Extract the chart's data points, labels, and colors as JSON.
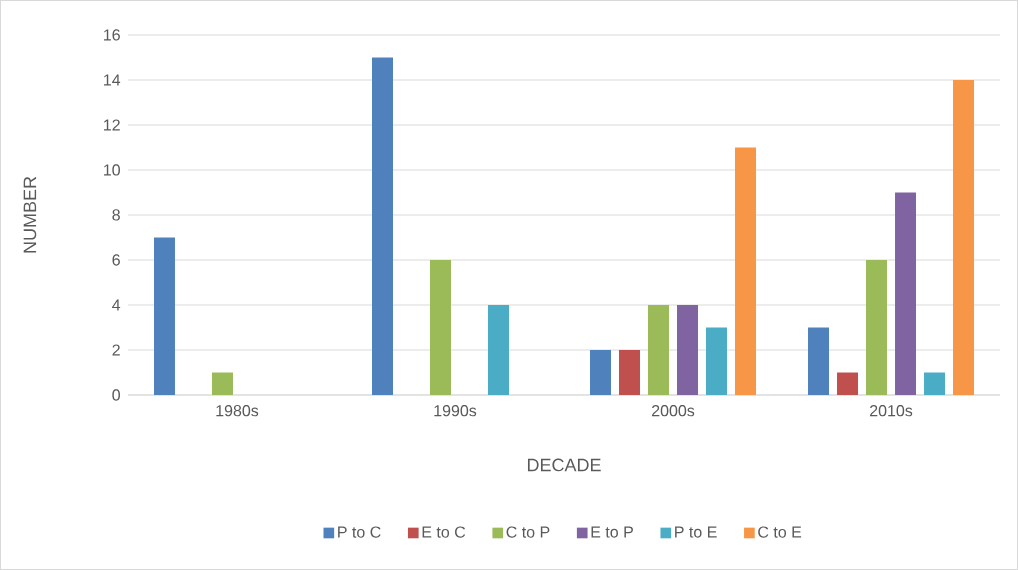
{
  "chart_data": {
    "type": "bar",
    "xlabel": "DECADE",
    "ylabel": "NUMBER",
    "categories": [
      "1980s",
      "1990s",
      "2000s",
      "2010s"
    ],
    "series": [
      {
        "name": "P to C",
        "color": "#4f81bd",
        "values": [
          7,
          15,
          2,
          3
        ]
      },
      {
        "name": "E to C",
        "color": "#c0504d",
        "values": [
          0,
          0,
          2,
          1
        ]
      },
      {
        "name": "C to P",
        "color": "#9bbb59",
        "values": [
          1,
          6,
          4,
          6
        ]
      },
      {
        "name": "E to P",
        "color": "#8064a2",
        "values": [
          0,
          0,
          4,
          9
        ]
      },
      {
        "name": "P to E",
        "color": "#4bacc6",
        "values": [
          0,
          4,
          3,
          1
        ]
      },
      {
        "name": "C to E",
        "color": "#f79646",
        "values": [
          0,
          0,
          11,
          14
        ]
      }
    ],
    "ylim": [
      0,
      16
    ],
    "yticks": [
      0,
      2,
      4,
      6,
      8,
      10,
      12,
      14,
      16
    ],
    "grid": "y",
    "legend": "bottom"
  }
}
